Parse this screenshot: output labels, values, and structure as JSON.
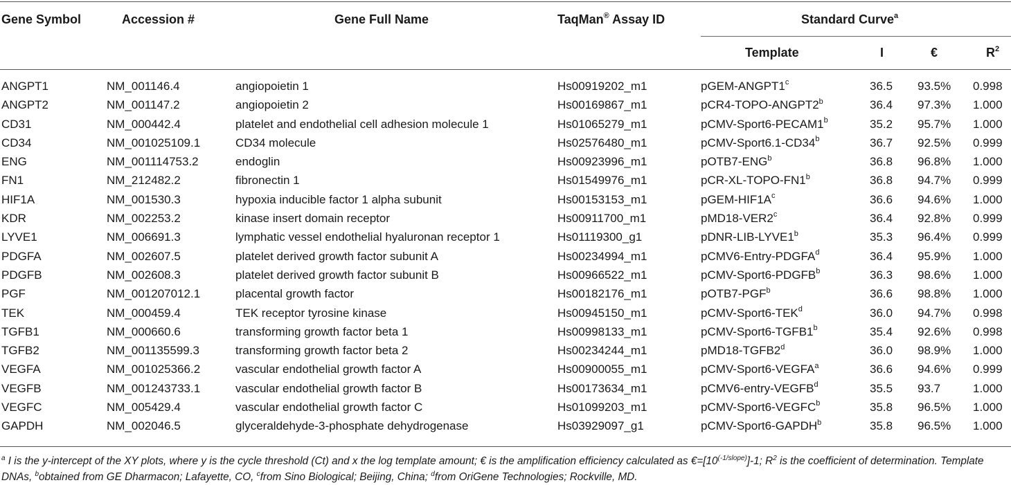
{
  "table": {
    "headers": {
      "gene_symbol": "Gene Symbol",
      "accession": "Accession #",
      "full_name": "Gene Full Name",
      "assay_id": "TaqMan",
      "assay_id_sup": "®",
      "assay_id_suffix": " Assay ID",
      "standard_curve": "Standard Curve",
      "standard_curve_sup": "a",
      "template": "Template",
      "i": "I",
      "efficiency": "€",
      "r2": "R",
      "r2_sup": "2"
    },
    "rows": [
      {
        "symbol": "ANGPT1",
        "accession": "NM_001146.4",
        "name": "angiopoietin 1",
        "assay": "Hs00919202_m1",
        "template": "pGEM-ANGPT1",
        "sup": "c",
        "i": "36.5",
        "eff": "93.5%",
        "r2": "0.998"
      },
      {
        "symbol": "ANGPT2",
        "accession": "NM_001147.2",
        "name": "angiopoietin 2",
        "assay": "Hs00169867_m1",
        "template": "pCR4-TOPO-ANGPT2",
        "sup": "b",
        "i": "36.4",
        "eff": "97.3%",
        "r2": "1.000"
      },
      {
        "symbol": "CD31",
        "accession": "NM_000442.4",
        "name": "platelet and endothelial cell adhesion molecule 1",
        "assay": "Hs01065279_m1",
        "template": "pCMV-Sport6-PECAM1",
        "sup": "b",
        "i": "35.2",
        "eff": "95.7%",
        "r2": "1.000"
      },
      {
        "symbol": "CD34",
        "accession": "NM_001025109.1",
        "name": "CD34 molecule",
        "assay": "Hs02576480_m1",
        "template": "pCMV-Sport6.1-CD34",
        "sup": "b",
        "i": "36.7",
        "eff": "92.5%",
        "r2": "0.999"
      },
      {
        "symbol": "ENG",
        "accession": "NM_001114753.2",
        "name": "endoglin",
        "assay": "Hs00923996_m1",
        "template": "pOTB7-ENG",
        "sup": "b",
        "i": "36.8",
        "eff": "96.8%",
        "r2": "1.000"
      },
      {
        "symbol": "FN1",
        "accession": "NM_212482.2",
        "name": "fibronectin 1",
        "assay": "Hs01549976_m1",
        "template": "pCR-XL-TOPO-FN1",
        "sup": "b",
        "i": "36.8",
        "eff": "94.7%",
        "r2": "0.999"
      },
      {
        "symbol": "HIF1A",
        "accession": "NM_001530.3",
        "name": "hypoxia inducible factor 1 alpha subunit",
        "assay": "Hs00153153_m1",
        "template": "pGEM-HIF1A",
        "sup": "c",
        "i": "36.6",
        "eff": "94.6%",
        "r2": "1.000"
      },
      {
        "symbol": "KDR",
        "accession": "NM_002253.2",
        "name": "kinase insert domain receptor",
        "assay": "Hs00911700_m1",
        "template": "pMD18-VER2",
        "sup": "c",
        "i": "36.4",
        "eff": "92.8%",
        "r2": "0.999"
      },
      {
        "symbol": "LYVE1",
        "accession": "NM_006691.3",
        "name": "lymphatic vessel endothelial hyaluronan receptor 1",
        "assay": "Hs01119300_g1",
        "template": "pDNR-LIB-LYVE1",
        "sup": "b",
        "i": "35.3",
        "eff": "96.4%",
        "r2": "0.999"
      },
      {
        "symbol": "PDGFA",
        "accession": "NM_002607.5",
        "name": "platelet derived growth factor subunit A",
        "assay": "Hs00234994_m1",
        "template": "pCMV6-Entry-PDGFA",
        "sup": "d",
        "i": "36.4",
        "eff": "95.9%",
        "r2": "1.000"
      },
      {
        "symbol": "PDGFB",
        "accession": "NM_002608.3",
        "name": "platelet derived growth factor subunit B",
        "assay": "Hs00966522_m1",
        "template": "pCMV-Sport6-PDGFB",
        "sup": "b",
        "i": "36.3",
        "eff": "98.6%",
        "r2": "1.000"
      },
      {
        "symbol": "PGF",
        "accession": "NM_001207012.1",
        "name": "placental growth factor",
        "assay": "Hs00182176_m1",
        "template": "pOTB7-PGF",
        "sup": "b",
        "i": "36.6",
        "eff": "98.8%",
        "r2": "1.000"
      },
      {
        "symbol": "TEK",
        "accession": "NM_000459.4",
        "name": "TEK receptor tyrosine kinase",
        "assay": "Hs00945150_m1",
        "template": "pCMV-Sport6-TEK",
        "sup": "d",
        "i": "36.0",
        "eff": "94.7%",
        "r2": "0.998"
      },
      {
        "symbol": "TGFB1",
        "accession": "NM_000660.6",
        "name": "transforming growth factor beta 1",
        "assay": "Hs00998133_m1",
        "template": "pCMV-Sport6-TGFB1",
        "sup": "b",
        "i": "35.4",
        "eff": "92.6%",
        "r2": "0.998"
      },
      {
        "symbol": "TGFB2",
        "accession": "NM_001135599.3",
        "name": "transforming growth factor beta 2",
        "assay": "Hs00234244_m1",
        "template": "pMD18-TGFB2",
        "sup": "d",
        "i": "36.0",
        "eff": "98.9%",
        "r2": "1.000"
      },
      {
        "symbol": "VEGFA",
        "accession": "NM_001025366.2",
        "name": "vascular endothelial growth factor A",
        "assay": "Hs00900055_m1",
        "template": "pCMV-Sport6-VEGFA",
        "sup": "a",
        "i": "36.6",
        "eff": "94.6%",
        "r2": "0.999"
      },
      {
        "symbol": "VEGFB",
        "accession": "NM_001243733.1",
        "name": "vascular endothelial growth factor B",
        "assay": "Hs00173634_m1",
        "template": "pCMV6-entry-VEGFB",
        "sup": "d",
        "i": "35.5",
        "eff": "93.7",
        "r2": "1.000"
      },
      {
        "symbol": "VEGFC",
        "accession": "NM_005429.4",
        "name": "vascular endothelial growth factor C",
        "assay": "Hs01099203_m1",
        "template": "pCMV-Sport6-VEGFC",
        "sup": "b",
        "i": "35.8",
        "eff": "96.5%",
        "r2": "1.000"
      },
      {
        "symbol": "GAPDH",
        "accession": "NM_002046.5",
        "name": "glyceraldehyde-3-phosphate dehydrogenase",
        "assay": "Hs03929097_g1",
        "template": "pCMV-Sport6-GAPDH",
        "sup": "b",
        "i": "35.8",
        "eff": "96.5%",
        "r2": "1.000"
      }
    ]
  },
  "footnote": {
    "sup_a": "a",
    "part1": " I is the y-intercept of the XY plots, where y is the cycle threshold (Ct) and x the log template amount; € is the amplification efficiency calculated as €=[10",
    "exp": "(-1/slope)",
    "part2": "]-1; R",
    "r2_sup": "2",
    "part3": " is the coefficient of determination. Template DNAs, ",
    "sup_b": "b",
    "part4": "obtained from GE Dharmacon; Lafayette, CO, ",
    "sup_c": "c",
    "part5": "from Sino Biological; Beijing, China; ",
    "sup_d": "d",
    "part6": "from OriGene Technologies; Rockville, MD."
  }
}
